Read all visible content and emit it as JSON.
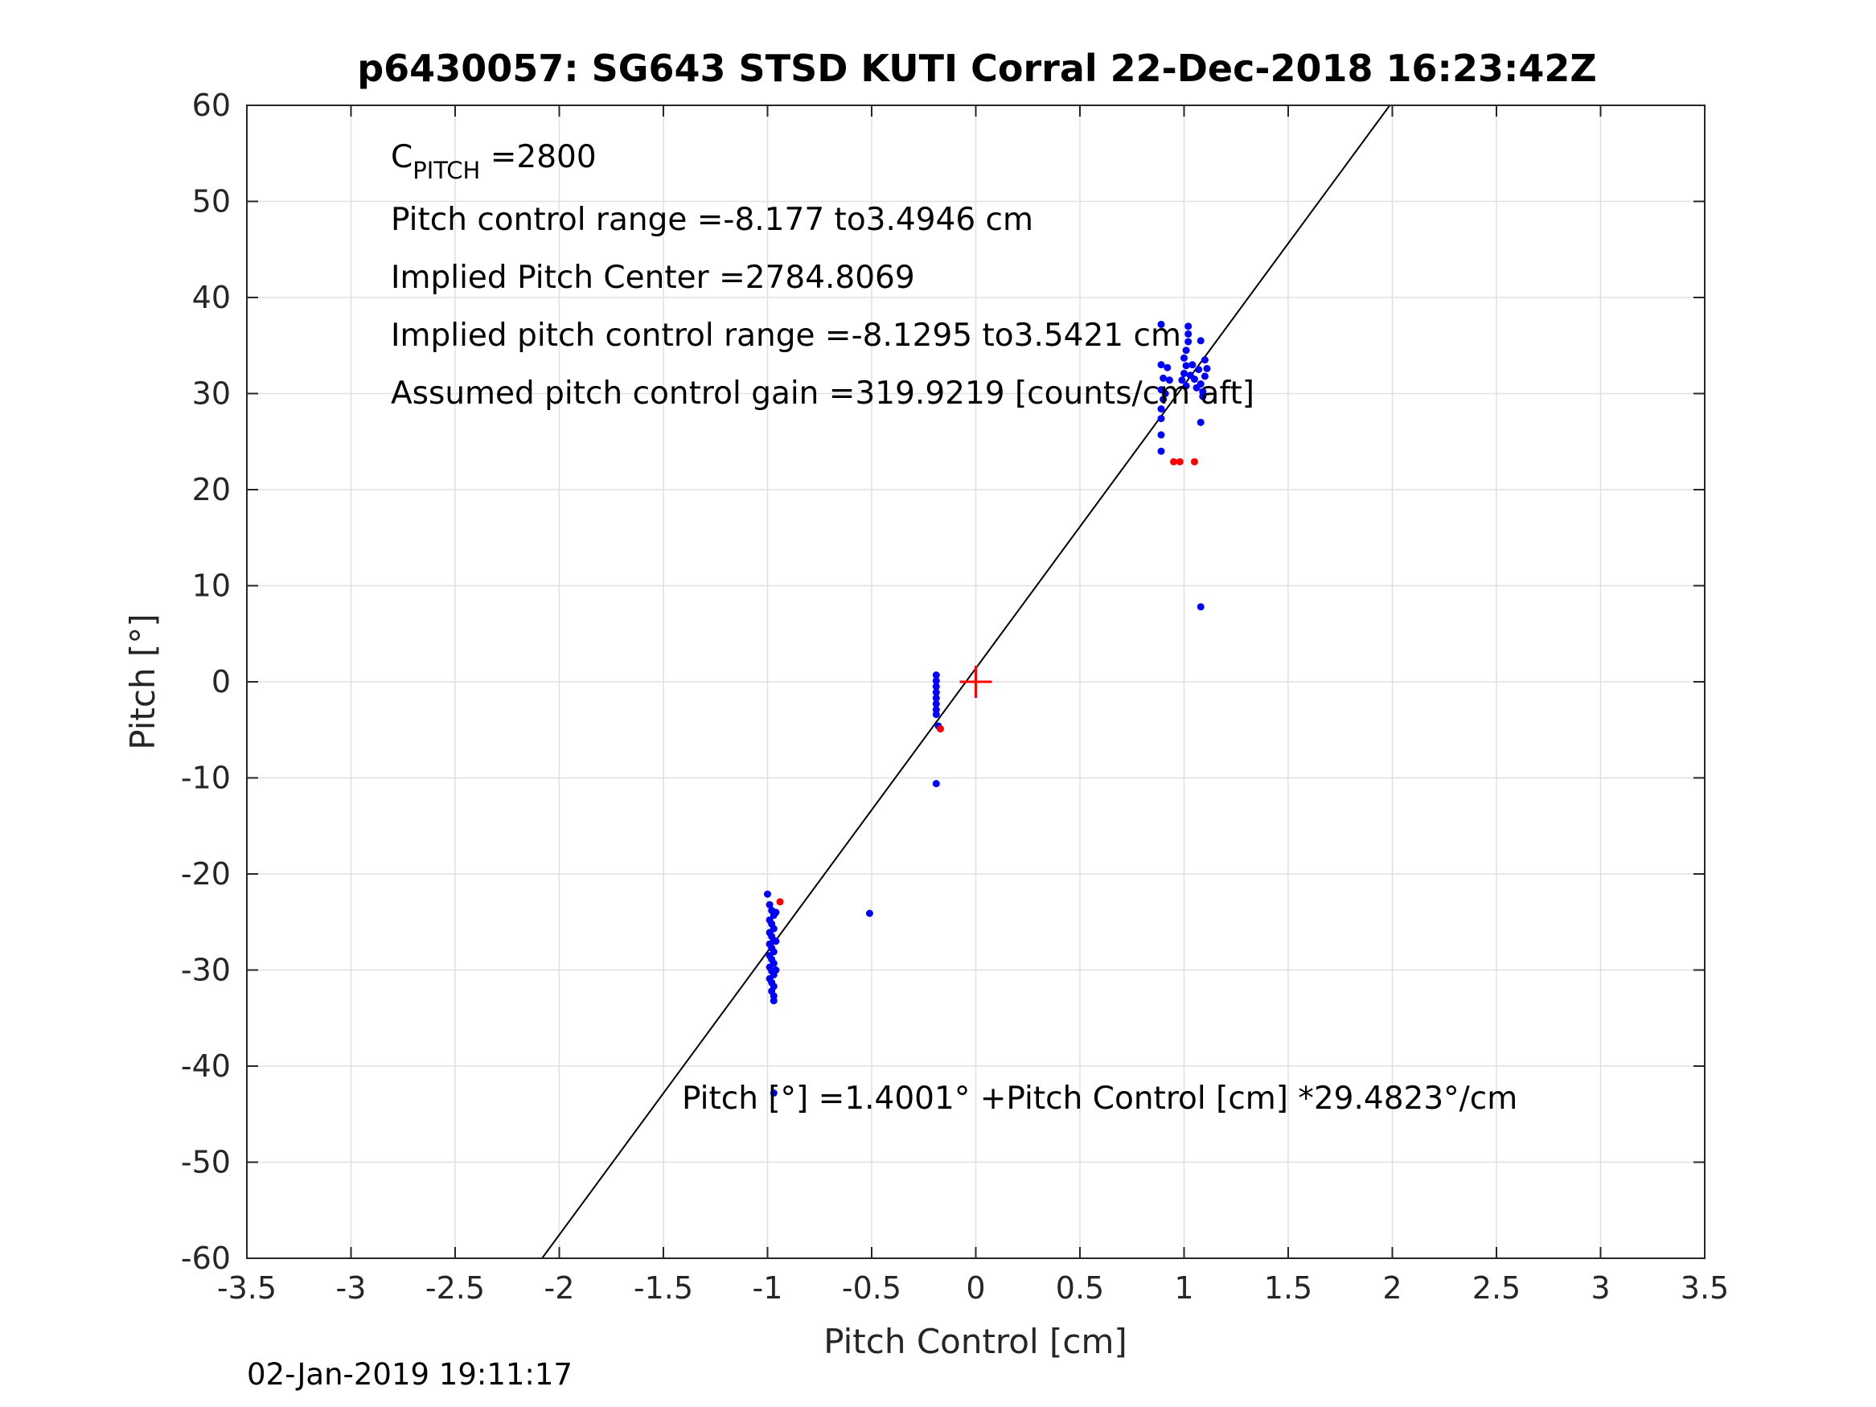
{
  "chart_data": {
    "type": "scatter",
    "title": "p6430057: SG643 STSD KUTI Corral 22-Dec-2018 16:23:42Z",
    "xlabel": "Pitch Control [cm]",
    "ylabel": "Pitch [°]",
    "xlim": [
      -3.5,
      3.5
    ],
    "ylim": [
      -60,
      60
    ],
    "xticks": [
      -3.5,
      -3,
      -2.5,
      -2,
      -1.5,
      -1,
      -0.5,
      0,
      0.5,
      1,
      1.5,
      2,
      2.5,
      3,
      3.5
    ],
    "xtick_labels": [
      "-3.5",
      "-3",
      "-2.5",
      "-2",
      "-1.5",
      "-1",
      "-0.5",
      "0",
      "0.5",
      "1",
      "1.5",
      "2",
      "2.5",
      "3",
      "3.5"
    ],
    "yticks": [
      -60,
      -50,
      -40,
      -30,
      -20,
      -10,
      0,
      10,
      20,
      30,
      40,
      50,
      60
    ],
    "ytick_labels": [
      "-60",
      "-50",
      "-40",
      "-30",
      "-20",
      "-10",
      "0",
      "10",
      "20",
      "30",
      "40",
      "50",
      "60"
    ],
    "grid": true,
    "colors": {
      "fit_points": "#0000ff",
      "excluded_points": "#ff0000",
      "center_marker": "#ff0000",
      "fit_line": "#000000",
      "grid": "#e0e0e0"
    },
    "annotations": {
      "c_pitch_main": "C",
      "c_pitch_sub": "PITCH",
      "c_pitch_value": " =2800",
      "range": "Pitch control range =-8.177 to3.4946 cm",
      "implied_center": "Implied Pitch Center =2784.8069",
      "implied_range": "Implied pitch control range =-8.1295 to3.5421 cm",
      "gain": "Assumed pitch control gain =319.9219 [counts/cm aft]",
      "fit_equation": "Pitch [°] =1.4001° +Pitch Control [cm] *29.4823°/cm"
    },
    "fit_line": {
      "intercept": 1.4001,
      "slope": 29.4823
    },
    "center_marker": {
      "x": 0,
      "y": 0
    },
    "series": [
      {
        "values": [
          {
            "x": -1.0,
            "y": -22.1
          },
          {
            "x": -0.99,
            "y": -23.2
          },
          {
            "x": -0.98,
            "y": -23.8
          },
          {
            "x": -0.97,
            "y": -24.3
          },
          {
            "x": -0.99,
            "y": -24.8
          },
          {
            "x": -0.98,
            "y": -25.2
          },
          {
            "x": -0.97,
            "y": -25.7
          },
          {
            "x": -0.99,
            "y": -26.1
          },
          {
            "x": -0.98,
            "y": -26.5
          },
          {
            "x": -0.97,
            "y": -26.9
          },
          {
            "x": -0.99,
            "y": -27.3
          },
          {
            "x": -0.98,
            "y": -27.7
          },
          {
            "x": -0.97,
            "y": -28.1
          },
          {
            "x": -0.99,
            "y": -28.5
          },
          {
            "x": -0.98,
            "y": -28.9
          },
          {
            "x": -0.97,
            "y": -29.3
          },
          {
            "x": -0.99,
            "y": -29.7
          },
          {
            "x": -0.98,
            "y": -30.1
          },
          {
            "x": -0.97,
            "y": -30.5
          },
          {
            "x": -0.99,
            "y": -30.9
          },
          {
            "x": -0.98,
            "y": -31.3
          },
          {
            "x": -0.97,
            "y": -31.7
          },
          {
            "x": -0.98,
            "y": -32.2
          },
          {
            "x": -0.97,
            "y": -32.7
          },
          {
            "x": -0.97,
            "y": -33.2
          },
          {
            "x": -0.96,
            "y": -24.0
          },
          {
            "x": -0.96,
            "y": -27.0
          },
          {
            "x": -0.96,
            "y": -30.0
          },
          {
            "x": -0.97,
            "y": -42.8
          },
          {
            "x": -0.51,
            "y": -24.1
          },
          {
            "x": -0.19,
            "y": 0.7
          },
          {
            "x": -0.19,
            "y": 0.1
          },
          {
            "x": -0.19,
            "y": -0.5
          },
          {
            "x": -0.19,
            "y": -1.1
          },
          {
            "x": -0.19,
            "y": -1.7
          },
          {
            "x": -0.19,
            "y": -2.3
          },
          {
            "x": -0.19,
            "y": -2.9
          },
          {
            "x": -0.19,
            "y": -3.4
          },
          {
            "x": -0.18,
            "y": -4.6
          },
          {
            "x": -0.19,
            "y": -10.6
          },
          {
            "x": 0.89,
            "y": 37.2
          },
          {
            "x": 0.89,
            "y": 33.0
          },
          {
            "x": 0.9,
            "y": 31.6
          },
          {
            "x": 0.89,
            "y": 30.4
          },
          {
            "x": 0.9,
            "y": 29.4
          },
          {
            "x": 0.89,
            "y": 28.4
          },
          {
            "x": 0.89,
            "y": 27.4
          },
          {
            "x": 0.89,
            "y": 25.7
          },
          {
            "x": 0.89,
            "y": 24.0
          },
          {
            "x": 0.92,
            "y": 32.7
          },
          {
            "x": 0.93,
            "y": 31.4
          },
          {
            "x": 0.91,
            "y": 30.0
          },
          {
            "x": 1.02,
            "y": 37.0
          },
          {
            "x": 1.02,
            "y": 36.2
          },
          {
            "x": 1.02,
            "y": 35.4
          },
          {
            "x": 1.01,
            "y": 34.5
          },
          {
            "x": 1.0,
            "y": 33.7
          },
          {
            "x": 1.01,
            "y": 32.9
          },
          {
            "x": 1.0,
            "y": 32.1
          },
          {
            "x": 0.99,
            "y": 31.4
          },
          {
            "x": 1.01,
            "y": 30.8
          },
          {
            "x": 1.03,
            "y": 31.9
          },
          {
            "x": 1.04,
            "y": 33.0
          },
          {
            "x": 1.05,
            "y": 31.5
          },
          {
            "x": 1.06,
            "y": 30.6
          },
          {
            "x": 1.07,
            "y": 32.5
          },
          {
            "x": 1.08,
            "y": 35.5
          },
          {
            "x": 1.08,
            "y": 31.0
          },
          {
            "x": 1.09,
            "y": 29.7
          },
          {
            "x": 1.08,
            "y": 27.0
          },
          {
            "x": 1.1,
            "y": 33.5
          },
          {
            "x": 1.1,
            "y": 31.8
          },
          {
            "x": 1.11,
            "y": 32.6
          },
          {
            "x": 1.09,
            "y": 30.2
          },
          {
            "x": 1.08,
            "y": 7.8
          }
        ]
      },
      {
        "values": [
          {
            "x": -0.94,
            "y": -22.9
          },
          {
            "x": -0.17,
            "y": -4.9
          },
          {
            "x": 0.95,
            "y": 22.9
          },
          {
            "x": 0.98,
            "y": 22.9
          },
          {
            "x": 1.05,
            "y": 22.9
          }
        ]
      }
    ]
  },
  "footer": {
    "timestamp": "02-Jan-2019 19:11:17"
  }
}
